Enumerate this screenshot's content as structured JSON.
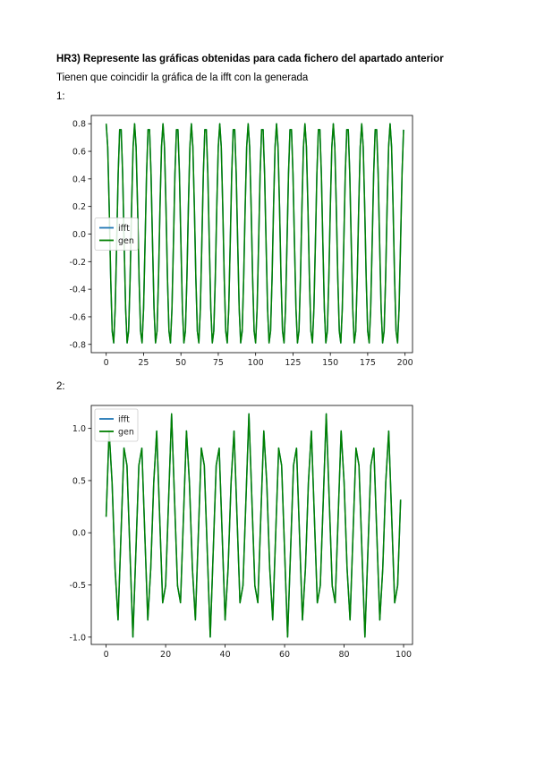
{
  "document": {
    "heading": "HR3) Represente las gráficas obtenidas para cada fichero del apartado anterior",
    "subheading": "Tienen que coincidir la gráfica de la ifft con la generada",
    "figure1_label": "1:",
    "figure2_label": "2:"
  },
  "colors": {
    "ifft": "#1f77b4",
    "gen": "#008000",
    "axes": "#000000",
    "panel": "#ffffff"
  },
  "chart_data": [
    {
      "type": "line",
      "xlim": [
        -10,
        205
      ],
      "ylim": [
        -0.86,
        0.86
      ],
      "xticks": [
        0,
        25,
        50,
        75,
        100,
        125,
        150,
        175,
        200
      ],
      "xtick_labels": [
        "0",
        "25",
        "50",
        "75",
        "100",
        "125",
        "150",
        "175",
        "200"
      ],
      "yticks": [
        -0.8,
        -0.6,
        -0.4,
        -0.2,
        0.0,
        0.2,
        0.4,
        0.6,
        0.8
      ],
      "ytick_labels": [
        "-0.8",
        "-0.6",
        "-0.4",
        "-0.2",
        "0.0",
        "0.2",
        "0.4",
        "0.6",
        "0.8"
      ],
      "grid": false,
      "legend": "center-left",
      "series": [
        {
          "name": "ifft",
          "x_range": [
            0,
            199
          ],
          "amplitude": 0.8,
          "period_samples": 9.5,
          "phase_deg": 90,
          "form": "sine"
        },
        {
          "name": "gen",
          "x_range": [
            0,
            199
          ],
          "amplitude": 0.8,
          "period_samples": 9.5,
          "phase_deg": 90,
          "form": "sine"
        }
      ]
    },
    {
      "type": "line",
      "xlim": [
        -5,
        103
      ],
      "ylim": [
        -1.07,
        1.22
      ],
      "xticks": [
        0,
        20,
        40,
        60,
        80,
        100
      ],
      "xtick_labels": [
        "0",
        "20",
        "40",
        "60",
        "80",
        "100"
      ],
      "yticks": [
        -1.0,
        -0.5,
        0.0,
        0.5,
        1.0
      ],
      "ytick_labels": [
        "-1.0",
        "-0.5",
        "0.0",
        "0.5",
        "1.0"
      ],
      "grid": false,
      "legend": "top-left",
      "series": [
        {
          "name": "ifft",
          "x_range": [
            0,
            99
          ],
          "x0": 0,
          "y0": 0.2,
          "max": 1.14,
          "min": -1.0,
          "period_samples": 5.2,
          "form": "triangle"
        },
        {
          "name": "gen",
          "x_range": [
            0,
            99
          ],
          "x0": 0,
          "y0": 0.2,
          "max": 1.14,
          "min": -1.0,
          "period_samples": 5.2,
          "form": "triangle"
        }
      ]
    }
  ]
}
